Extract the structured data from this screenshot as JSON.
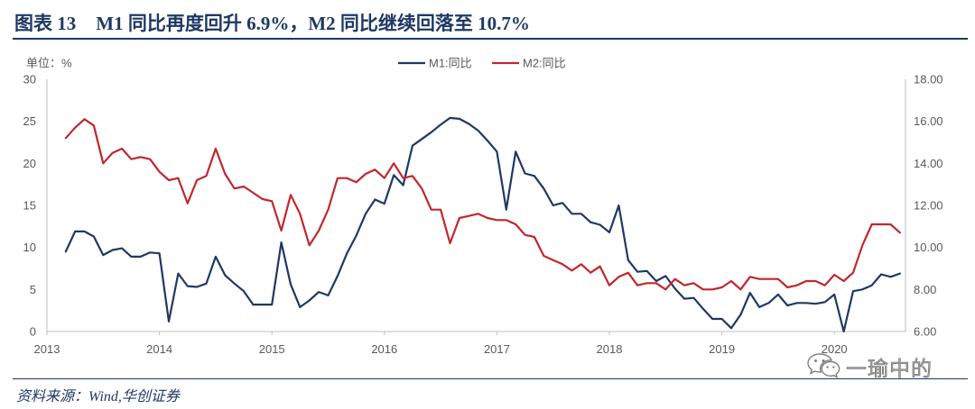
{
  "figure": {
    "label": "图表 13",
    "accent_color": "#1F3864"
  },
  "chart_data": {
    "type": "line",
    "title": "M1 同比再度回升 6.9%，M2 同比继续回落至 10.7%",
    "ylabel_left": "单位：%",
    "legend": "top-center",
    "grid": false,
    "x_ticks": [
      "2013",
      "2014",
      "2015",
      "2016",
      "2017",
      "2018",
      "2019",
      "2020"
    ],
    "y_left": {
      "ylim": [
        0,
        30
      ],
      "ticks": [
        "0",
        "5",
        "10",
        "15",
        "20",
        "25",
        "30"
      ]
    },
    "y_right": {
      "ylim": [
        6,
        18
      ],
      "ticks": [
        "6.00",
        "8.00",
        "10.00",
        "12.00",
        "14.00",
        "16.00",
        "18.00"
      ]
    },
    "x": [
      "2013-02",
      "2013-03",
      "2013-04",
      "2013-05",
      "2013-06",
      "2013-07",
      "2013-08",
      "2013-09",
      "2013-10",
      "2013-11",
      "2013-12",
      "2014-01",
      "2014-02",
      "2014-03",
      "2014-04",
      "2014-05",
      "2014-06",
      "2014-07",
      "2014-08",
      "2014-09",
      "2014-10",
      "2014-11",
      "2014-12",
      "2015-01",
      "2015-02",
      "2015-03",
      "2015-04",
      "2015-05",
      "2015-06",
      "2015-07",
      "2015-08",
      "2015-09",
      "2015-10",
      "2015-11",
      "2015-12",
      "2016-01",
      "2016-02",
      "2016-03",
      "2016-04",
      "2016-05",
      "2016-06",
      "2016-07",
      "2016-08",
      "2016-09",
      "2016-10",
      "2016-11",
      "2016-12",
      "2017-01",
      "2017-02",
      "2017-03",
      "2017-04",
      "2017-05",
      "2017-06",
      "2017-07",
      "2017-08",
      "2017-09",
      "2017-10",
      "2017-11",
      "2017-12",
      "2018-01",
      "2018-02",
      "2018-03",
      "2018-04",
      "2018-05",
      "2018-06",
      "2018-07",
      "2018-08",
      "2018-09",
      "2018-10",
      "2018-11",
      "2018-12",
      "2019-01",
      "2019-02",
      "2019-03",
      "2019-04",
      "2019-05",
      "2019-06",
      "2019-07",
      "2019-08",
      "2019-09",
      "2019-10",
      "2019-11",
      "2019-12",
      "2020-01",
      "2020-02",
      "2020-03",
      "2020-04",
      "2020-05",
      "2020-06",
      "2020-07"
    ],
    "series": [
      {
        "name": "M1:同比",
        "axis": "left",
        "color": "#1F3864",
        "values": [
          9.5,
          11.9,
          11.9,
          11.3,
          9.1,
          9.7,
          9.9,
          8.9,
          8.9,
          9.4,
          9.3,
          1.2,
          6.9,
          5.4,
          5.3,
          5.7,
          8.9,
          6.7,
          5.7,
          4.8,
          3.2,
          3.2,
          3.2,
          10.6,
          5.6,
          2.9,
          3.7,
          4.7,
          4.3,
          6.6,
          9.3,
          11.4,
          14.0,
          15.7,
          15.2,
          18.6,
          17.4,
          22.1,
          22.9,
          23.7,
          24.6,
          25.4,
          25.3,
          24.7,
          23.9,
          22.7,
          21.4,
          14.5,
          21.4,
          18.8,
          18.5,
          17.0,
          15.0,
          15.3,
          14.0,
          14.0,
          13.0,
          12.7,
          11.8,
          15.0,
          8.5,
          7.1,
          7.2,
          6.0,
          6.6,
          5.1,
          3.9,
          4.0,
          2.7,
          1.5,
          1.5,
          0.4,
          2.0,
          4.6,
          2.9,
          3.4,
          4.4,
          3.1,
          3.4,
          3.4,
          3.3,
          3.5,
          4.4,
          0.0,
          4.8,
          5.0,
          5.5,
          6.8,
          6.5,
          6.9
        ]
      },
      {
        "name": "M2:同比",
        "axis": "right",
        "color": "#C0272D",
        "values": [
          15.2,
          15.7,
          16.1,
          15.8,
          14.0,
          14.5,
          14.7,
          14.2,
          14.3,
          14.2,
          13.6,
          13.2,
          13.3,
          12.1,
          13.2,
          13.4,
          14.7,
          13.5,
          12.8,
          12.9,
          12.6,
          12.3,
          12.2,
          10.8,
          12.5,
          11.6,
          10.1,
          10.8,
          11.8,
          13.3,
          13.3,
          13.1,
          13.5,
          13.7,
          13.3,
          14.0,
          13.3,
          13.4,
          12.8,
          11.8,
          11.8,
          10.2,
          11.4,
          11.5,
          11.6,
          11.4,
          11.3,
          11.3,
          11.1,
          10.6,
          10.5,
          9.6,
          9.4,
          9.2,
          8.9,
          9.2,
          8.8,
          9.1,
          8.2,
          8.6,
          8.8,
          8.2,
          8.3,
          8.3,
          8.0,
          8.5,
          8.2,
          8.3,
          8.0,
          8.0,
          8.1,
          8.4,
          8.0,
          8.6,
          8.5,
          8.5,
          8.5,
          8.1,
          8.2,
          8.4,
          8.4,
          8.2,
          8.7,
          8.4,
          8.8,
          10.1,
          11.1,
          11.1,
          11.1,
          10.7
        ]
      }
    ]
  },
  "footer": {
    "source": "资料来源：Wind,华创证券"
  },
  "watermark": {
    "icon": "wechat-icon",
    "text": "一瑜中的"
  }
}
